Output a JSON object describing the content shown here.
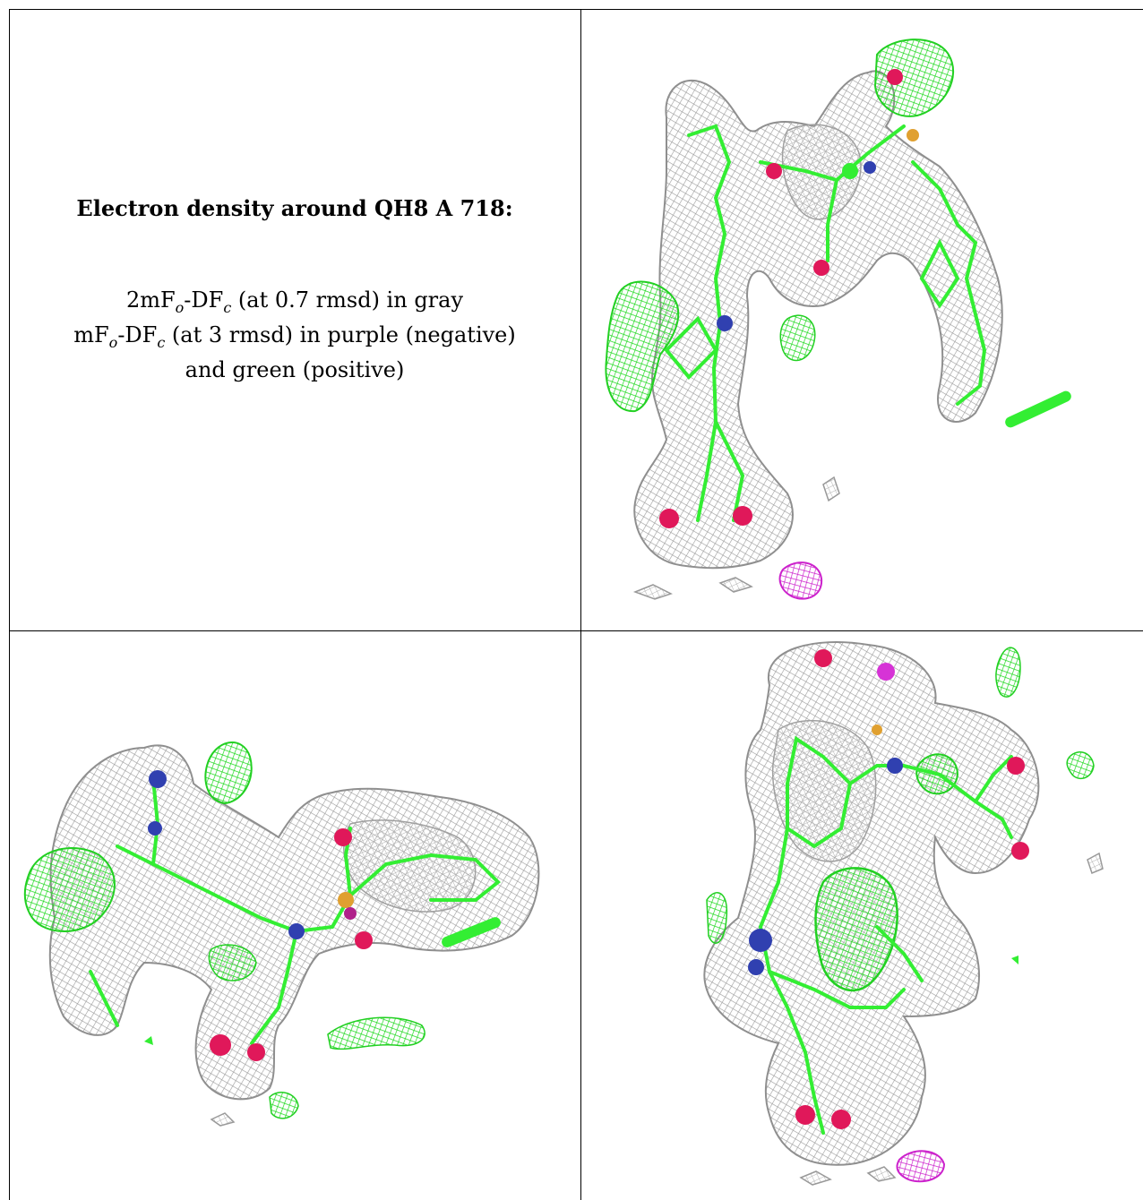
{
  "caption": {
    "title": "Electron density around QH8 A 718:",
    "line1": "2mFo-DFc (at 0.7 rmsd) in gray",
    "line2": "mFo-DFc (at 3 rmsd) in purple (negative)",
    "line3": "and green (positive)"
  },
  "colors": {
    "mesh_2fofc": "#a9a9a9",
    "mesh_positive": "#22e222",
    "mesh_negative": "#d633d6",
    "carbon": "#33ee33",
    "oxygen": "#e0185a",
    "nitrogen": "#3040b0",
    "sulfur": "#e0a030"
  },
  "panels": [
    {
      "name": "view-1",
      "description_icon": "density-mesh-icon"
    },
    {
      "name": "view-2",
      "description_icon": "density-mesh-icon"
    },
    {
      "name": "view-3",
      "description_icon": "density-mesh-icon"
    }
  ]
}
